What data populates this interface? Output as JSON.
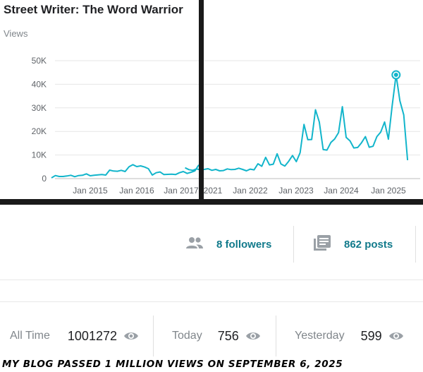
{
  "header": {
    "title": "Street Writer: The Word Warrior",
    "metric_label": "Views"
  },
  "chart_data": {
    "type": "line",
    "title": "Street Writer: The Word Warrior",
    "ylabel": "Views",
    "xlabel": "",
    "ylim": [
      0,
      50000
    ],
    "y_ticks": [
      0,
      10000,
      20000,
      30000,
      40000,
      50000
    ],
    "y_tick_labels": [
      "0",
      "10K",
      "20K",
      "30K",
      "40K",
      "50K"
    ],
    "x_tick_labels": [
      "Jan 2015",
      "Jan 2016",
      "Jan 2017",
      "2021",
      "Jan 2022",
      "Jan 2023",
      "Jan 2024",
      "Jan 2025"
    ],
    "color": "#12b5cb",
    "grid": true,
    "series": [
      {
        "segments": [
          {
            "x_start": "2014-03",
            "values": [
              300,
              1300,
              900,
              900,
              1100,
              1400,
              800,
              1300,
              1400,
              2000,
              1200,
              1400,
              1600,
              1700,
              1500,
              3600,
              3200,
              3100,
              3500,
              3000,
              5000,
              5900,
              5100,
              5400,
              4900,
              4200,
              1500,
              2500,
              2800,
              1700,
              1800,
              1900,
              1700,
              2500,
              3000,
              2200,
              2700,
              3300,
              5800
            ]
          },
          {
            "x_start": "2020-08",
            "values": [
              4600,
              3800,
              3500,
              4100,
              3700,
              3900,
              4200,
              3500,
              3900,
              3300,
              3400,
              4100,
              3800,
              3900,
              4400,
              3900,
              3300,
              4000,
              3700,
              6300,
              5200,
              9000,
              5800,
              6100,
              10500,
              6200,
              5300,
              7300,
              9800,
              7200,
              11000,
              23000,
              16500,
              16600,
              29200,
              24000,
              12300,
              12100,
              15300,
              16800,
              19500,
              30500,
              17500,
              16000,
              13000,
              13200,
              15200,
              17800,
              13300,
              13700,
              17800,
              19700,
              24000,
              16700,
              31000,
              44000,
              33000,
              27000,
              7800
            ]
          }
        ],
        "highlight_value": 44000
      }
    ]
  },
  "stats": {
    "followers": {
      "label": "8 followers",
      "icon": "people-icon"
    },
    "posts": {
      "label": "862 posts",
      "icon": "posts-library-icon"
    }
  },
  "totals": {
    "all_time": {
      "label": "All Time",
      "value": "1001272"
    },
    "today": {
      "label": "Today",
      "value": "756"
    },
    "yesterday": {
      "label": "Yesterday",
      "value": "599"
    }
  },
  "caption": "My blog passed 1 million views on September 6, 2025",
  "colors": {
    "accent": "#117a8b",
    "line": "#12b5cb",
    "muted": "#80868b",
    "divider": "#1a1a1a"
  }
}
